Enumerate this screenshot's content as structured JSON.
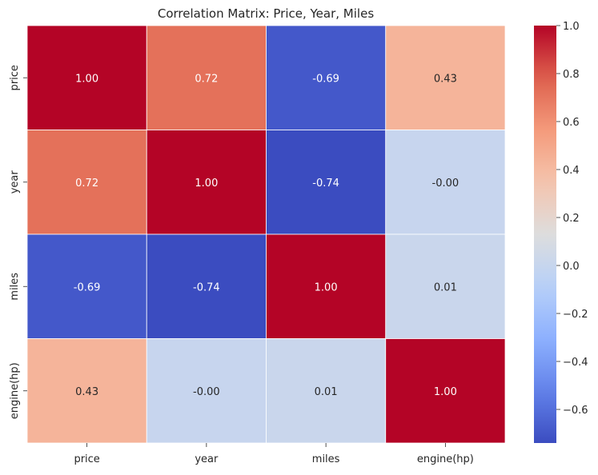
{
  "chart_data": {
    "type": "heatmap",
    "title": "Correlation Matrix: Price, Year, Miles",
    "rows": [
      "price",
      "year",
      "miles",
      "engine(hp)"
    ],
    "columns": [
      "price",
      "year",
      "miles",
      "engine(hp)"
    ],
    "values": [
      [
        1.0,
        0.72,
        -0.69,
        0.43
      ],
      [
        0.72,
        1.0,
        -0.74,
        -0.0
      ],
      [
        -0.69,
        -0.74,
        1.0,
        0.01
      ],
      [
        0.43,
        -0.0,
        0.01,
        1.0
      ]
    ],
    "cell_labels": [
      [
        "1.00",
        "0.72",
        "-0.69",
        "0.43"
      ],
      [
        "0.72",
        "1.00",
        "-0.74",
        "-0.00"
      ],
      [
        "-0.69",
        "-0.74",
        "1.00",
        "0.01"
      ],
      [
        "0.43",
        "-0.00",
        "0.01",
        "1.00"
      ]
    ],
    "colormap": "coolwarm",
    "vmin": -0.74,
    "vmax": 1.0,
    "colorbar_ticks": [
      "1.0",
      "0.8",
      "0.6",
      "0.4",
      "0.2",
      "0.0",
      "−0.2",
      "−0.4",
      "−0.6"
    ],
    "colorbar_tick_values": [
      1.0,
      0.8,
      0.6,
      0.4,
      0.2,
      0.0,
      -0.2,
      -0.4,
      -0.6
    ],
    "xlabel": "",
    "ylabel": "",
    "grid": false,
    "legend": "colorbar-right",
    "text_colors": {
      "dark": "#262626",
      "light": "#ffffff"
    }
  }
}
